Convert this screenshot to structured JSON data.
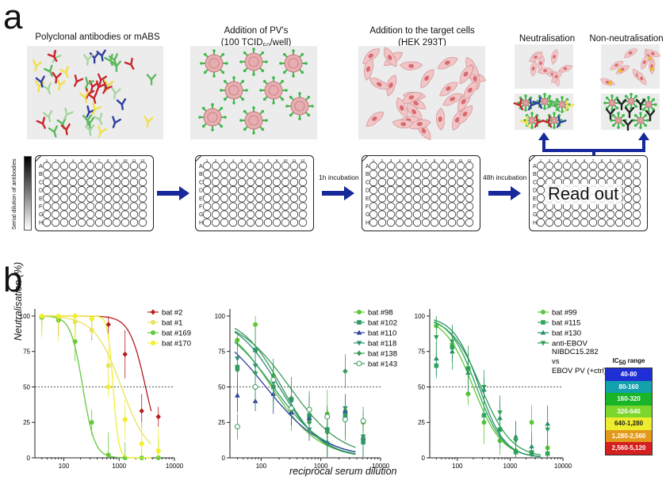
{
  "panel_a": {
    "letter": "a",
    "steps": [
      {
        "title": "Polyclonal antibodies or mABS"
      },
      {
        "title_line1": "Addition of PV's",
        "title_line2_pre": "(100 TCID",
        "title_line2_sub": "50",
        "title_line2_post": "/well)"
      },
      {
        "title_line1": "Addition to the target cells",
        "title_line2": "(HEK 293T)"
      },
      {
        "title": "Neutralisation"
      },
      {
        "title": "Non-neutralisation"
      }
    ],
    "plate_rows": [
      "A",
      "B",
      "C",
      "D",
      "E",
      "F",
      "G",
      "H"
    ],
    "plate_cols": [
      "1",
      "2",
      "3",
      "4",
      "5",
      "6",
      "7",
      "8",
      "9",
      "10",
      "11",
      "12"
    ],
    "gradient_label": "Serial dilution of antibodies",
    "incubation_1": "1h incubation",
    "incubation_2": "48h incubation",
    "readout": "Read out"
  },
  "panel_b": {
    "letter": "b",
    "ylabel": "Neutralisation (%)",
    "xlabel": "reciprocal serum dilution",
    "legend_title_pre": "IC",
    "legend_title_sub": "50",
    "legend_title_post": " range",
    "ic50_ranges": [
      {
        "label": "40-80",
        "color": "#1f2fd6"
      },
      {
        "label": "80-160",
        "color": "#13a1ad"
      },
      {
        "label": "160-320",
        "color": "#19b528"
      },
      {
        "label": "320-640",
        "color": "#7dd62c"
      },
      {
        "label": "640-1,280",
        "color": "#eded2d"
      },
      {
        "label": "1,280-2,560",
        "color": "#e39a1c"
      },
      {
        "label": "2,560-5,120",
        "color": "#d61f1f"
      }
    ],
    "extra_legend": [
      "anti-EBOV",
      "NIBDC15.282",
      "vs",
      "EBOV PV (+ctrl)"
    ]
  },
  "chart_data": [
    {
      "type": "line",
      "xscale": "log",
      "xlim": [
        30,
        10000
      ],
      "ylim": [
        0,
        105
      ],
      "yticks": [
        0,
        25,
        50,
        75,
        100
      ],
      "xticks": [
        "100",
        "1000",
        "10000"
      ],
      "ylabel": "Neutralisation (%)",
      "threshold": 50,
      "series": [
        {
          "name": "bat #2",
          "color": "#b51d1d",
          "marker": "diamond",
          "ic50": 3000,
          "hill": 3.0,
          "x": [
            40,
            80,
            160,
            320,
            640,
            1280,
            2560,
            5120
          ],
          "y": [
            99,
            99,
            100,
            98,
            94,
            73,
            33,
            29
          ]
        },
        {
          "name": "bat #1",
          "color": "#e8e35a",
          "marker": "circle",
          "ic50": 1100,
          "hill": 1.8,
          "x": [
            40,
            80,
            160,
            320,
            640,
            1280,
            2560,
            5120
          ],
          "y": [
            99,
            98,
            96,
            90,
            65,
            27,
            10,
            5
          ]
        },
        {
          "name": "bat #169",
          "color": "#65c93b",
          "marker": "circle",
          "ic50": 220,
          "hill": 4.0,
          "x": [
            40,
            80,
            160,
            320,
            640,
            1280,
            2560,
            5120
          ],
          "y": [
            99,
            97,
            82,
            25,
            2,
            0,
            0,
            0
          ]
        },
        {
          "name": "bat #170",
          "color": "#f2ef2a",
          "marker": "circle",
          "ic50": 780,
          "hill": 9.0,
          "x": [
            40,
            80,
            160,
            320,
            640,
            1280,
            2560,
            5120
          ],
          "y": [
            100,
            100,
            100,
            98,
            50,
            27,
            10,
            5
          ]
        }
      ]
    },
    {
      "type": "line",
      "xscale": "log",
      "xlim": [
        30,
        10000
      ],
      "ylim": [
        0,
        105
      ],
      "yticks": [
        0,
        25,
        50,
        75,
        100
      ],
      "xticks": [
        "100",
        "1000",
        "10000"
      ],
      "xlabel": "reciprocal serum dilution",
      "threshold": 50,
      "series": [
        {
          "name": "bat #98",
          "color": "#62c636",
          "marker": "circle",
          "ic50": 150,
          "hill": 1.1,
          "x": [
            40,
            80,
            160,
            320,
            640,
            1280,
            2560,
            5120
          ],
          "y": [
            83,
            94,
            58,
            34,
            27,
            31,
            33,
            25
          ]
        },
        {
          "name": "bat #102",
          "color": "#2e9a68",
          "marker": "square",
          "ic50": 160,
          "hill": 1.0,
          "x": [
            40,
            80,
            160,
            320,
            640,
            1280,
            2560,
            5120
          ],
          "y": [
            64,
            76,
            50,
            41,
            30,
            20,
            30,
            11
          ]
        },
        {
          "name": "bat #110",
          "color": "#2c3fa0",
          "marker": "triangle",
          "ic50": 120,
          "hill": 0.9,
          "x": [
            40,
            80,
            160,
            320,
            640,
            1280,
            2560,
            5120
          ],
          "y": [
            44,
            40,
            45,
            32,
            28,
            11,
            33,
            14
          ]
        },
        {
          "name": "bat #118",
          "color": "#2a8f73",
          "marker": "tridown",
          "ic50": 200,
          "hill": 1.2,
          "x": [
            40,
            80,
            160,
            320,
            640,
            1280,
            2560,
            5120
          ],
          "y": [
            70,
            65,
            53,
            40,
            20,
            10,
            35,
            15
          ]
        },
        {
          "name": "bat #138",
          "color": "#3a9a5a",
          "marker": "diamond",
          "ic50": 220,
          "hill": 1.3,
          "x": [
            40,
            80,
            160,
            320,
            640,
            1280,
            2560,
            5120
          ],
          "y": [
            62,
            60,
            50,
            42,
            25,
            18,
            61,
            14
          ]
        },
        {
          "name": "bat #143",
          "color": "#3a9a5a",
          "marker": "opencircle",
          "ic50": 300,
          "hill": 1.0,
          "x": [
            40,
            80,
            160,
            320,
            640,
            1280,
            2560,
            5120
          ],
          "y": [
            22,
            50,
            55,
            35,
            34,
            29,
            27,
            26
          ]
        }
      ]
    },
    {
      "type": "line",
      "xscale": "log",
      "xlim": [
        30,
        10000
      ],
      "ylim": [
        0,
        105
      ],
      "yticks": [
        0,
        25,
        50,
        75,
        100
      ],
      "xticks": [
        "100",
        "1000",
        "10000"
      ],
      "threshold": 50,
      "series": [
        {
          "name": "bat #99",
          "color": "#5cc83a",
          "marker": "circle",
          "ic50": 200,
          "hill": 1.6,
          "x": [
            40,
            80,
            160,
            320,
            640,
            1280,
            2560,
            5120
          ],
          "y": [
            93,
            80,
            45,
            25,
            12,
            5,
            25,
            7
          ]
        },
        {
          "name": "bat #115",
          "color": "#2fa55c",
          "marker": "square",
          "ic50": 230,
          "hill": 1.7,
          "x": [
            40,
            80,
            160,
            320,
            640,
            1280,
            2560,
            5120
          ],
          "y": [
            65,
            78,
            63,
            30,
            20,
            4,
            3,
            3
          ]
        },
        {
          "name": "bat #130",
          "color": "#2a8f6a",
          "marker": "triangle",
          "ic50": 260,
          "hill": 1.8,
          "x": [
            40,
            80,
            160,
            320,
            640,
            1280,
            2560,
            5120
          ],
          "y": [
            70,
            75,
            60,
            48,
            28,
            15,
            8,
            24
          ]
        },
        {
          "name": "anti-EBOV",
          "color": "#2e9e55",
          "marker": "tridown",
          "ic50": 280,
          "hill": 1.5,
          "x": [
            40,
            80,
            160,
            320,
            640,
            1280,
            2560,
            5120
          ],
          "y": [
            85,
            82,
            62,
            50,
            32,
            12,
            4,
            20
          ]
        }
      ]
    }
  ]
}
